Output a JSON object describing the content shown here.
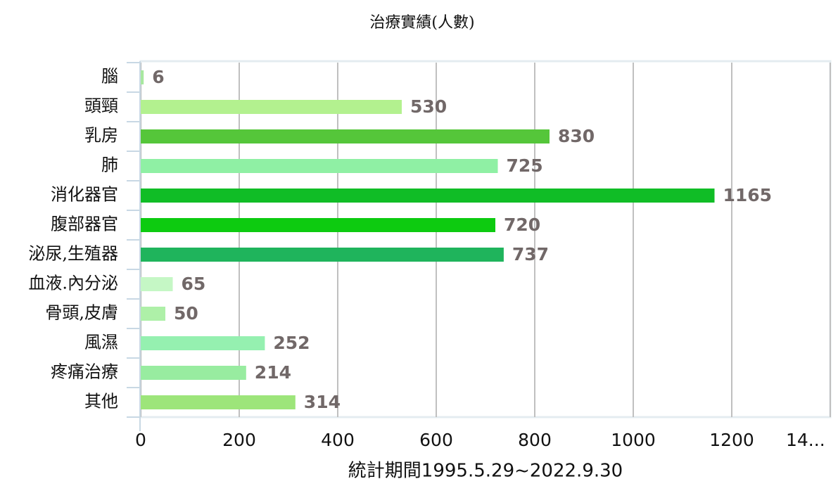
{
  "chart_data": {
    "type": "bar",
    "orientation": "horizontal",
    "title": "治療實績(人數)",
    "x_label": "統計期間1995.5.29~2022.9.30",
    "categories": [
      "腦",
      "頭頸",
      "乳房",
      "肺",
      "消化器官",
      "腹部器官",
      "泌尿,生殖器",
      "血液.內分泌",
      "骨頭,皮膚",
      "風濕",
      "疼痛治療",
      "其他"
    ],
    "values": [
      6,
      530,
      830,
      725,
      1165,
      720,
      737,
      65,
      50,
      252,
      214,
      314
    ],
    "colors": [
      "#a8e8a0",
      "#b3f18f",
      "#55c63a",
      "#8ff0a4",
      "#10bd26",
      "#0dcb10",
      "#1fb45c",
      "#c5f7c5",
      "#aef0a8",
      "#95f0b0",
      "#98eca0",
      "#9de57a"
    ],
    "xlim": [
      0,
      1400
    ],
    "xticks": [
      0,
      200,
      400,
      600,
      800,
      1000,
      1200,
      {
        "value": 1400,
        "label": "14..."
      }
    ],
    "grid": true
  }
}
